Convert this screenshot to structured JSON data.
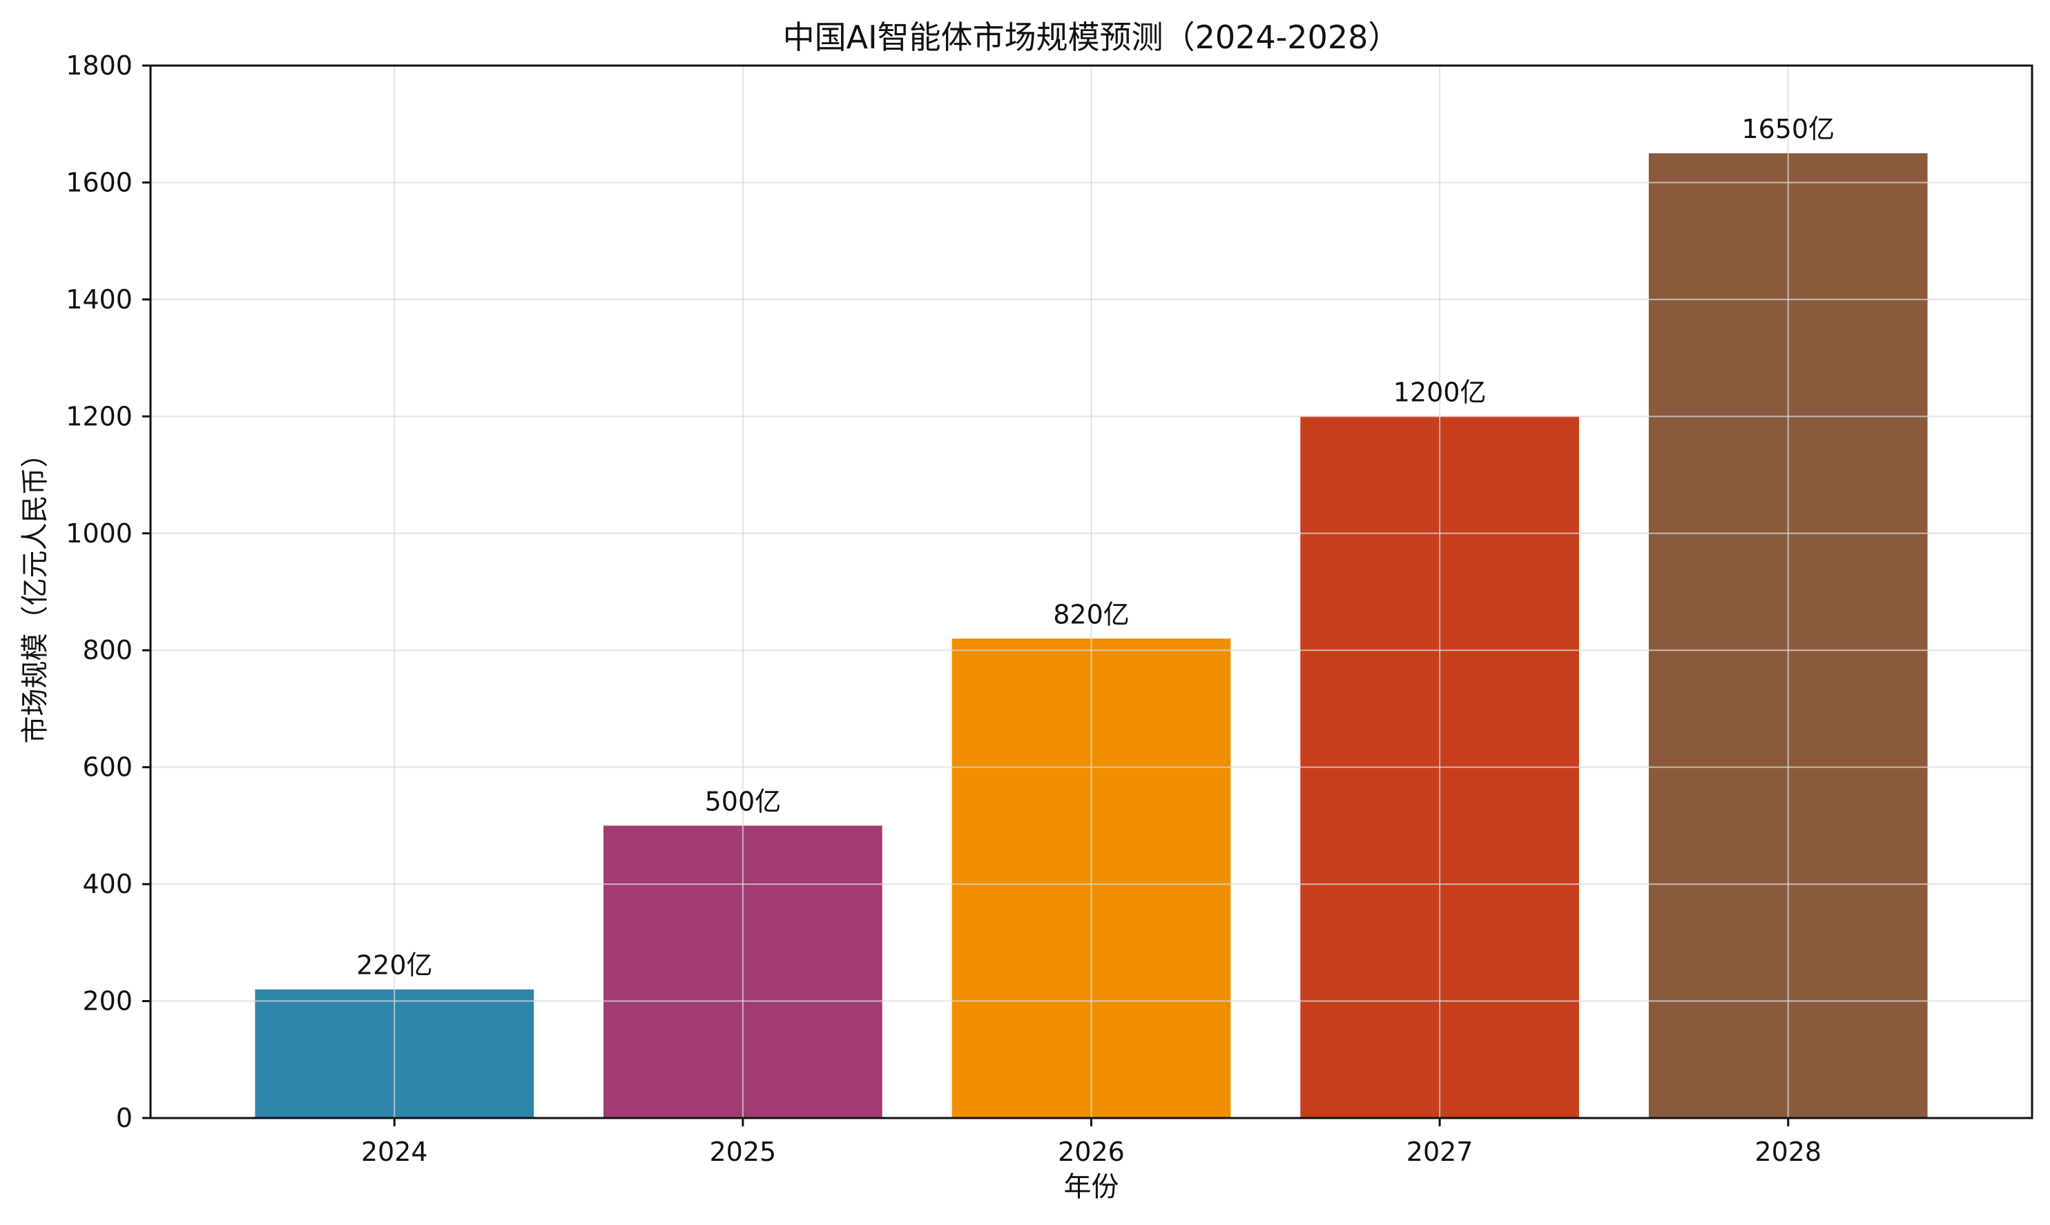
{
  "chart_data": {
    "type": "bar",
    "title": "中国AI智能体市场规模预测（2024-2028）",
    "xlabel": "年份",
    "ylabel": "市场规模（亿元人民币）",
    "categories": [
      "2024",
      "2025",
      "2026",
      "2027",
      "2028"
    ],
    "values": [
      220,
      500,
      820,
      1200,
      1650
    ],
    "data_labels": [
      "220亿",
      "500亿",
      "820亿",
      "1200亿",
      "1650亿"
    ],
    "colors": [
      "#2E86AB",
      "#A23B72",
      "#F18F01",
      "#C73E1D",
      "#8B5A3C"
    ],
    "ylim": [
      0,
      1800
    ],
    "yticks": [
      0,
      200,
      400,
      600,
      800,
      1000,
      1200,
      1400,
      1600,
      1800
    ],
    "grid": true,
    "legend": false
  }
}
